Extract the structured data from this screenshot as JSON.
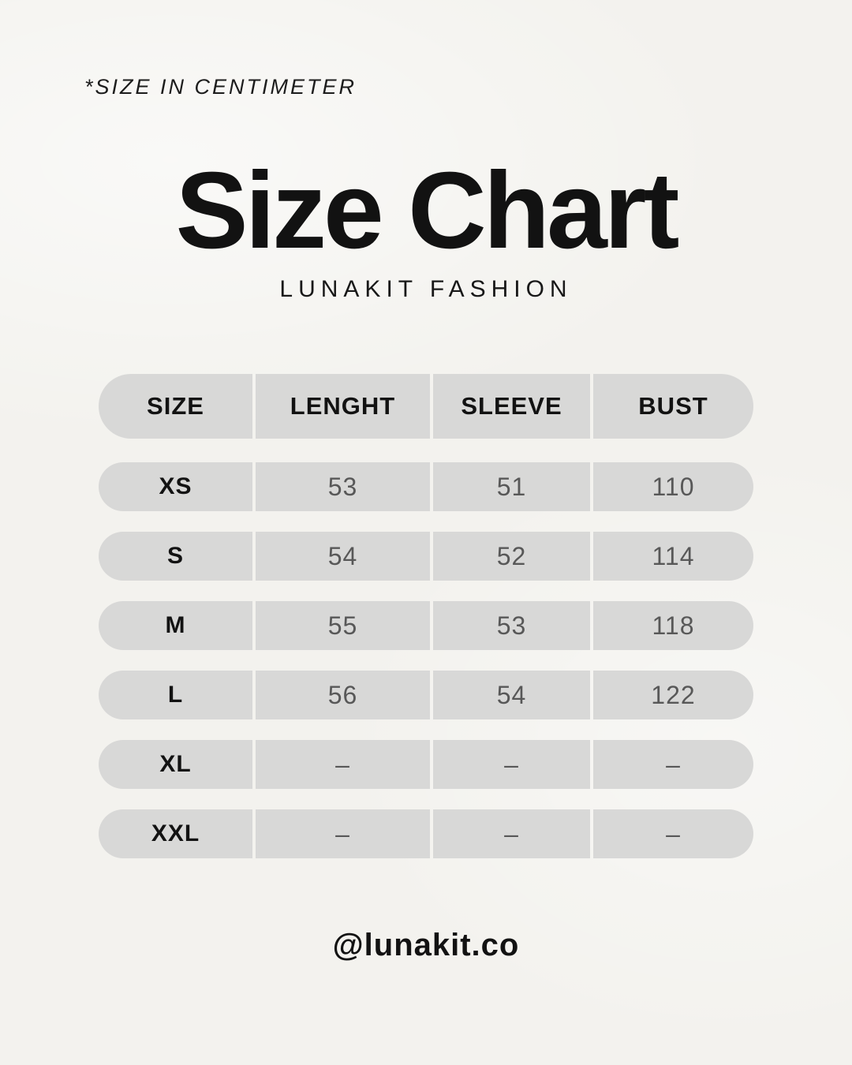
{
  "note": "*SIZE IN CENTIMETER",
  "header": {
    "title": "Size Chart",
    "subtitle": "LUNAKIT FASHION"
  },
  "footer": {
    "handle": "@lunakit.co"
  },
  "colors": {
    "background": "#f3f2ee",
    "pill": "#d8d8d7",
    "text_primary": "#121212",
    "text_values": "#585858"
  },
  "chart_data": {
    "type": "table",
    "title": "Size Chart",
    "subtitle": "LUNAKIT FASHION",
    "units_note": "*SIZE IN CENTIMETER",
    "columns": [
      "SIZE",
      "LENGHT",
      "SLEEVE",
      "BUST"
    ],
    "rows": [
      [
        "XS",
        "53",
        "51",
        "110"
      ],
      [
        "S",
        "54",
        "52",
        "114"
      ],
      [
        "M",
        "55",
        "53",
        "118"
      ],
      [
        "L",
        "56",
        "54",
        "122"
      ],
      [
        "XL",
        "–",
        "–",
        "–"
      ],
      [
        "XXL",
        "–",
        "–",
        "–"
      ]
    ]
  }
}
